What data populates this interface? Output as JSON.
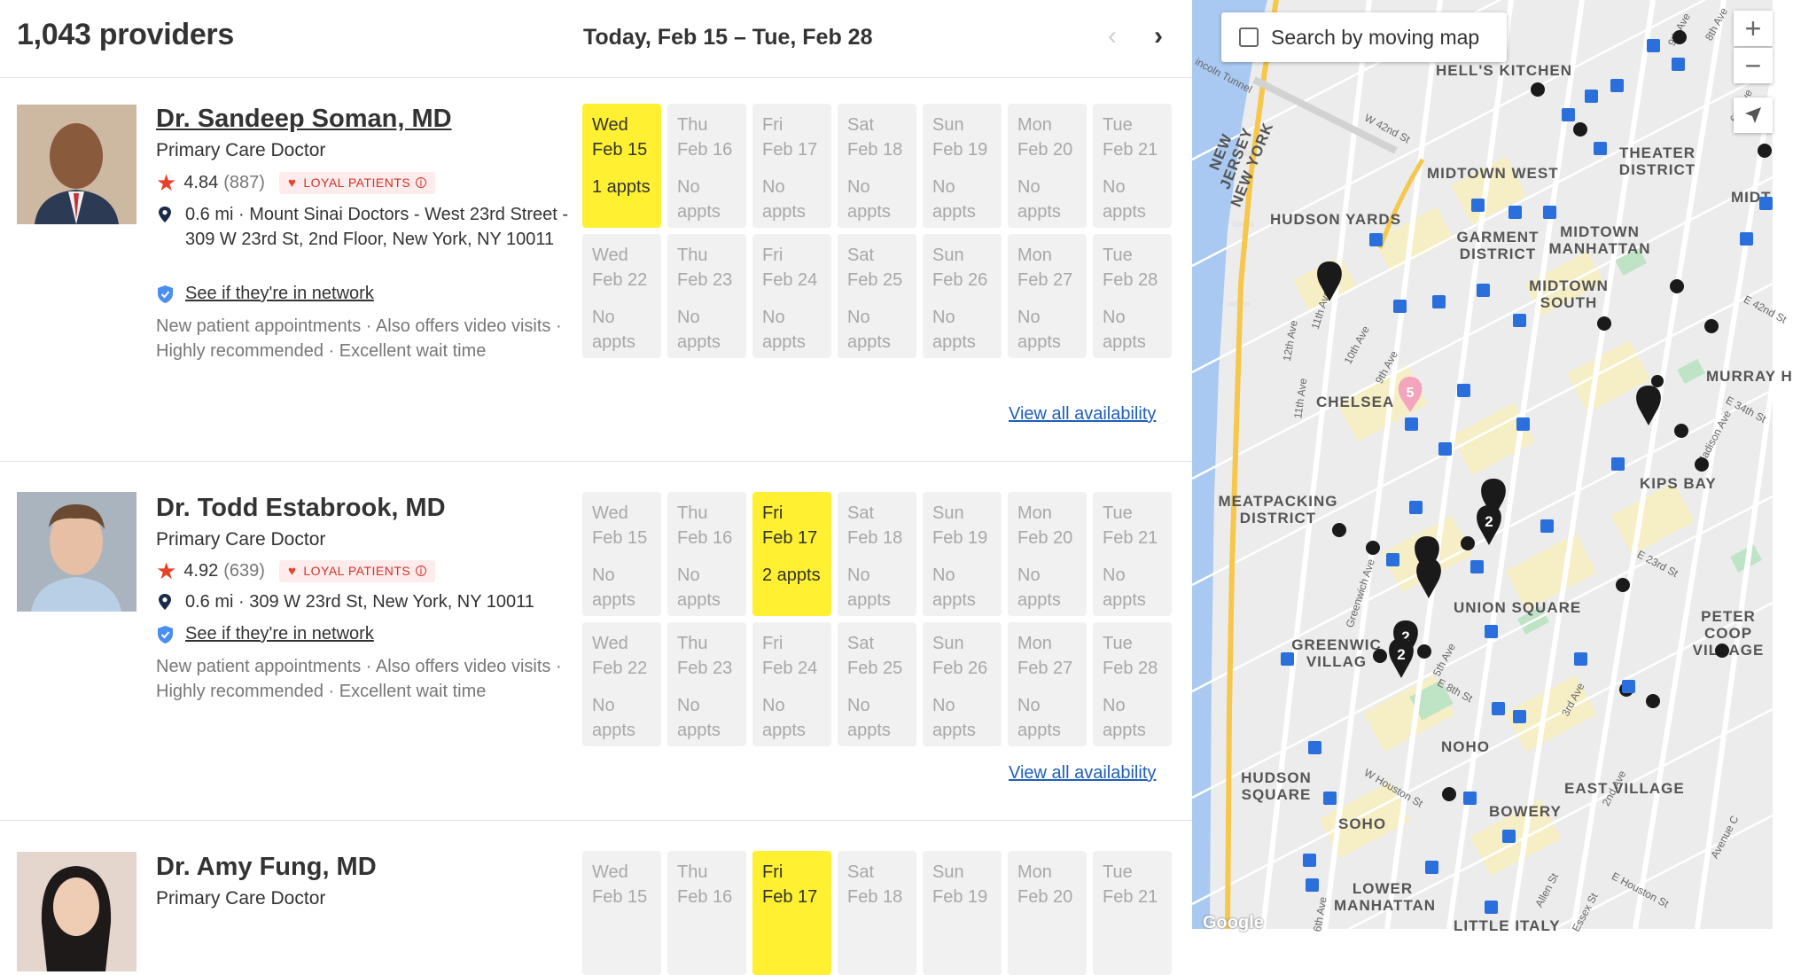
{
  "header": {
    "provider_count": "1,043 providers",
    "date_range": "Today, Feb 15 – Tue, Feb 28",
    "prev_icon": "chevron-left-icon",
    "next_icon": "chevron-right-icon"
  },
  "providers": [
    {
      "name": "Dr. Sandeep Soman, MD",
      "specialty": "Primary Care Doctor",
      "rating": "4.84",
      "review_count": "(887)",
      "badge": "LOYAL PATIENTS",
      "distance": "0.6 mi",
      "address": "Mount Sinai Doctors - West 23rd Street - 309 W 23rd St, 2nd Floor, New York, NY 10011",
      "network_link": "See if they're in network",
      "description": "New patient appointments · Also offers video visits · Highly recommended · Excellent wait time",
      "view_all": "View all availability",
      "slots": [
        {
          "day": "Wed",
          "date": "Feb 15",
          "appts": "1 appts",
          "available": true
        },
        {
          "day": "Thu",
          "date": "Feb 16",
          "appts": "No appts",
          "available": false
        },
        {
          "day": "Fri",
          "date": "Feb 17",
          "appts": "No appts",
          "available": false
        },
        {
          "day": "Sat",
          "date": "Feb 18",
          "appts": "No appts",
          "available": false
        },
        {
          "day": "Sun",
          "date": "Feb 19",
          "appts": "No appts",
          "available": false
        },
        {
          "day": "Mon",
          "date": "Feb 20",
          "appts": "No appts",
          "available": false
        },
        {
          "day": "Tue",
          "date": "Feb 21",
          "appts": "No appts",
          "available": false
        },
        {
          "day": "Wed",
          "date": "Feb 22",
          "appts": "No appts",
          "available": false
        },
        {
          "day": "Thu",
          "date": "Feb 23",
          "appts": "No appts",
          "available": false
        },
        {
          "day": "Fri",
          "date": "Feb 24",
          "appts": "No appts",
          "available": false
        },
        {
          "day": "Sat",
          "date": "Feb 25",
          "appts": "No appts",
          "available": false
        },
        {
          "day": "Sun",
          "date": "Feb 26",
          "appts": "No appts",
          "available": false
        },
        {
          "day": "Mon",
          "date": "Feb 27",
          "appts": "No appts",
          "available": false
        },
        {
          "day": "Tue",
          "date": "Feb 28",
          "appts": "No appts",
          "available": false
        }
      ]
    },
    {
      "name": "Dr. Todd Estabrook, MD",
      "specialty": "Primary Care Doctor",
      "rating": "4.92",
      "review_count": "(639)",
      "badge": "LOYAL PATIENTS",
      "distance": "0.6 mi",
      "address": "309 W 23rd St, New York, NY 10011",
      "network_link": "See if they're in network",
      "description": "New patient appointments · Also offers video visits · Highly recommended · Excellent wait time",
      "view_all": "View all availability",
      "slots": [
        {
          "day": "Wed",
          "date": "Feb 15",
          "appts": "No appts",
          "available": false
        },
        {
          "day": "Thu",
          "date": "Feb 16",
          "appts": "No appts",
          "available": false
        },
        {
          "day": "Fri",
          "date": "Feb 17",
          "appts": "2 appts",
          "available": true
        },
        {
          "day": "Sat",
          "date": "Feb 18",
          "appts": "No appts",
          "available": false
        },
        {
          "day": "Sun",
          "date": "Feb 19",
          "appts": "No appts",
          "available": false
        },
        {
          "day": "Mon",
          "date": "Feb 20",
          "appts": "No appts",
          "available": false
        },
        {
          "day": "Tue",
          "date": "Feb 21",
          "appts": "No appts",
          "available": false
        },
        {
          "day": "Wed",
          "date": "Feb 22",
          "appts": "No appts",
          "available": false
        },
        {
          "day": "Thu",
          "date": "Feb 23",
          "appts": "No appts",
          "available": false
        },
        {
          "day": "Fri",
          "date": "Feb 24",
          "appts": "No appts",
          "available": false
        },
        {
          "day": "Sat",
          "date": "Feb 25",
          "appts": "No appts",
          "available": false
        },
        {
          "day": "Sun",
          "date": "Feb 26",
          "appts": "No appts",
          "available": false
        },
        {
          "day": "Mon",
          "date": "Feb 27",
          "appts": "No appts",
          "available": false
        },
        {
          "day": "Tue",
          "date": "Feb 28",
          "appts": "No appts",
          "available": false
        }
      ]
    },
    {
      "name": "Dr. Amy Fung, MD",
      "specialty": "Primary Care Doctor",
      "slots": [
        {
          "day": "Wed",
          "date": "Feb 15",
          "available": false
        },
        {
          "day": "Thu",
          "date": "Feb 16",
          "available": false
        },
        {
          "day": "Fri",
          "date": "Feb 17",
          "available": true
        },
        {
          "day": "Sat",
          "date": "Feb 18",
          "available": false
        },
        {
          "day": "Sun",
          "date": "Feb 19",
          "available": false
        },
        {
          "day": "Mon",
          "date": "Feb 20",
          "available": false
        },
        {
          "day": "Tue",
          "date": "Feb 21",
          "available": false
        }
      ]
    }
  ],
  "map": {
    "search_by_moving_map": "Search by moving map",
    "zoom_in": "+",
    "zoom_out": "−",
    "locate_icon": "location-arrow-icon",
    "logo": "Google",
    "cluster_counts": [
      "5",
      "2",
      "2",
      "2"
    ],
    "labels": {
      "hells_kitchen": "HELL'S KITCHEN",
      "theater_district": "THEATER DISTRICT",
      "midtown_west": "MIDTOWN WEST",
      "hudson_yards": "HUDSON YARDS",
      "garment_district": "GARMENT DISTRICT",
      "midtown_manhattan": "MIDTOWN MANHATTAN",
      "midtown_south": "MIDTOWN SOUTH",
      "midt": "MIDT",
      "chelsea": "CHELSEA",
      "murray_hill": "MURRAY H",
      "kips_bay": "KIPS BAY",
      "meatpacking": "MEATPACKING DISTRICT",
      "union_square": "UNION SQUARE",
      "peter_cooper": "PETER COOP VILLAGE",
      "greenwich_village": "GREENWIC VILLAG",
      "noho": "NOHO",
      "hudson_square": "HUDSON SQUARE",
      "east_village": "EAST VILLAGE",
      "bowery": "BOWERY",
      "soho": "SOHO",
      "lower_manhattan": "LOWER MANHATTAN",
      "little_italy": "LITTLE ITALY",
      "new_jersey_new_york": "NEW JERSEY NEW YORK",
      "lincoln_tunnel": "incoln Tunnel"
    },
    "streets": {
      "ninth_ave_top": "9th Ave",
      "eighth_ave_top": "8th Ave",
      "w42": "W 42nd St",
      "sixth_ave": "6th Ave",
      "eleventh_ave": "11th Ave",
      "tenth_ave": "10th Ave",
      "twelfth_ave": "12th Ave",
      "eleventh_ave_2": "11th Ave",
      "ninth_ave_2": "9th Ave",
      "madison": "Madison Ave",
      "e34": "E 34th St",
      "e42": "E 42nd St",
      "greenwich_ave": "Greenwich Ave",
      "e23": "E 23rd St",
      "fifth_ave": "5th Ave",
      "e8": "E 8th St",
      "third_ave": "3rd Ave",
      "w_houston": "W Houston St",
      "second_ave": "2nd Ave",
      "avenue_c": "Avenue C",
      "allen": "Allen St",
      "essex": "Essex St",
      "e_houston": "E Houston St",
      "sixth_ave_2": "6th Ave"
    }
  }
}
